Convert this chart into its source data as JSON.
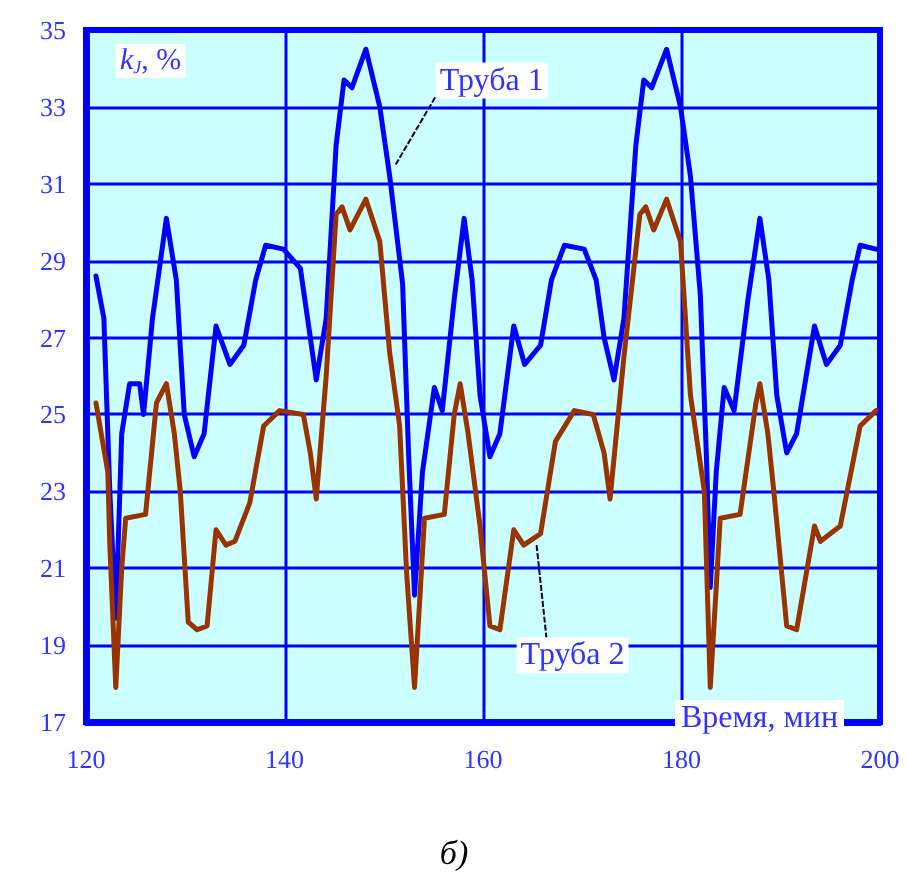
{
  "chart_data": {
    "type": "line",
    "title": "б)",
    "xlabel": "Время, мин",
    "ylabel": "k$_{J}$, %",
    "xlim": [
      120,
      200
    ],
    "xticks": [
      120,
      140,
      160,
      180,
      200
    ],
    "ylim": [
      17,
      35
    ],
    "yticks": [
      17,
      19,
      21,
      23,
      25,
      27,
      29,
      31,
      33,
      35
    ],
    "grid": true,
    "marker": "none",
    "annotations": [
      {
        "text": "Труба 1",
        "x": 151.2,
        "y": 31.5
      },
      {
        "text": "Труба 2",
        "x": 165.4,
        "y": 21.6
      }
    ],
    "series": [
      {
        "color": "#0000ff",
        "x": [
          121.0,
          121.8,
          122.4,
          123.0,
          123.6,
          124.4,
          125.4,
          125.8,
          126.7,
          128.1,
          129.1,
          129.9,
          130.9,
          131.9,
          133.1,
          134.5,
          135.9,
          137.1,
          138.1,
          139.9,
          141.6,
          142.6,
          143.2,
          144.2,
          145.2,
          146.0,
          146.8,
          148.2,
          149.6,
          150.6,
          151.9,
          152.5,
          153.1,
          153.9,
          155.1,
          155.9,
          157.1,
          158.1,
          158.9,
          159.7,
          160.7,
          161.7,
          163.1,
          164.2,
          165.8,
          166.9,
          168.2,
          170.2,
          171.4,
          172.2,
          173.2,
          174.2,
          175.4,
          176.2,
          177.0,
          178.5,
          179.9,
          180.9,
          181.9,
          182.5,
          182.9,
          183.5,
          184.3,
          185.3,
          186.7,
          187.9,
          188.8,
          189.6,
          190.6,
          191.6,
          193.4,
          194.6,
          196.0,
          197.2,
          198.0,
          199.6
        ],
        "values": [
          28.6,
          27.5,
          23,
          19.7,
          24.5,
          25.8,
          25.8,
          25.0,
          27.5,
          30.1,
          28.5,
          25,
          23.9,
          24.5,
          27.3,
          26.3,
          26.8,
          28.5,
          29.4,
          29.3,
          28.8,
          27,
          25.9,
          27.5,
          32,
          33.7,
          33.5,
          34.5,
          33,
          31.2,
          28.4,
          24,
          20.3,
          23.5,
          25.7,
          25.1,
          28,
          30.1,
          28.5,
          25.5,
          23.9,
          24.5,
          27.3,
          26.3,
          26.8,
          28.5,
          29.4,
          29.3,
          28.5,
          27,
          25.9,
          27.5,
          32,
          33.7,
          33.5,
          34.5,
          33,
          31.2,
          28.1,
          24,
          20.5,
          23.5,
          25.7,
          25.1,
          28,
          30.1,
          28.5,
          25.5,
          24.0,
          24.5,
          27.3,
          26.3,
          26.8,
          28.5,
          29.4,
          29.3
        ]
      },
      {
        "color": "#993300",
        "x": [
          121.0,
          122.2,
          122.4,
          123.0,
          123.6,
          124.0,
          126.0,
          127.1,
          128.1,
          128.9,
          129.5,
          130.3,
          131.2,
          132.2,
          133.1,
          134.1,
          135.0,
          136.5,
          137.9,
          139.5,
          141.9,
          142.6,
          143.2,
          144.2,
          145.2,
          145.8,
          146.6,
          148.2,
          149.6,
          150.6,
          151.6,
          152.3,
          153.1,
          153.7,
          154.1,
          156.1,
          157.1,
          157.7,
          158.5,
          159.7,
          160.7,
          161.7,
          163.1,
          164.1,
          165.8,
          167.3,
          169.2,
          171.1,
          172.2,
          172.8,
          174.2,
          175.8,
          176.4,
          177.2,
          178.5,
          179.9,
          180.9,
          182.3,
          182.9,
          183.5,
          183.9,
          185.9,
          187.5,
          187.9,
          188.7,
          189.3,
          190.6,
          191.6,
          193.4,
          194.0,
          196.0,
          198.0,
          199.6
        ],
        "values": [
          25.3,
          23.5,
          21.6,
          17.9,
          21,
          22.3,
          22.4,
          25.3,
          25.8,
          24.5,
          23,
          19.6,
          19.4,
          19.5,
          22.0,
          21.6,
          21.7,
          22.7,
          24.7,
          25.1,
          25.0,
          24,
          22.8,
          26,
          30.2,
          30.4,
          29.8,
          30.6,
          29.5,
          26.6,
          24.7,
          20.9,
          17.9,
          20.5,
          22.3,
          22.4,
          25,
          25.8,
          24.5,
          22.1,
          19.5,
          19.4,
          22.0,
          21.6,
          21.9,
          24.3,
          25.1,
          25.0,
          24,
          22.8,
          26.5,
          30.2,
          30.4,
          29.8,
          30.6,
          29.5,
          25.5,
          23.0,
          17.9,
          20.5,
          22.3,
          22.4,
          25.3,
          25.8,
          24.5,
          23,
          19.5,
          19.4,
          22.1,
          21.7,
          22.1,
          24.7,
          25.1
        ]
      }
    ]
  }
}
